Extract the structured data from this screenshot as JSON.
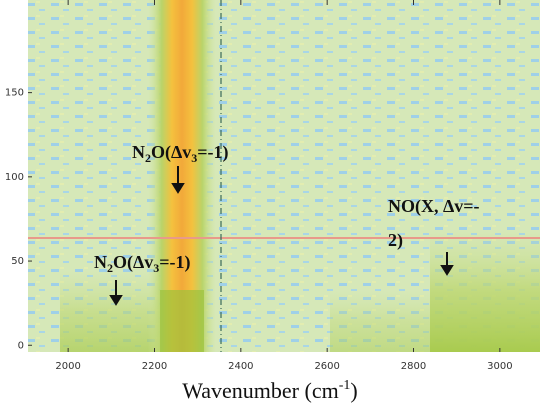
{
  "chart_data": {
    "type": "heatmap",
    "xlabel": [
      "Wavenumber (cm",
      "-1",
      ")"
    ],
    "xlim": [
      1907,
      3093
    ],
    "xticks": [
      2000,
      2200,
      2400,
      2600,
      2800,
      3000
    ],
    "ylim": [
      -4,
      205
    ],
    "yticks": [
      0,
      50,
      100,
      150
    ],
    "annotations": [
      {
        "parts": [
          "N",
          "2",
          "O(Δv",
          "3",
          "=-1)"
        ]
      },
      {
        "parts": [
          "N",
          "2",
          "O(Δv",
          "3",
          "=-1)"
        ]
      },
      {
        "lines": [
          "NO(X, Δv=-",
          "2)"
        ]
      }
    ]
  }
}
